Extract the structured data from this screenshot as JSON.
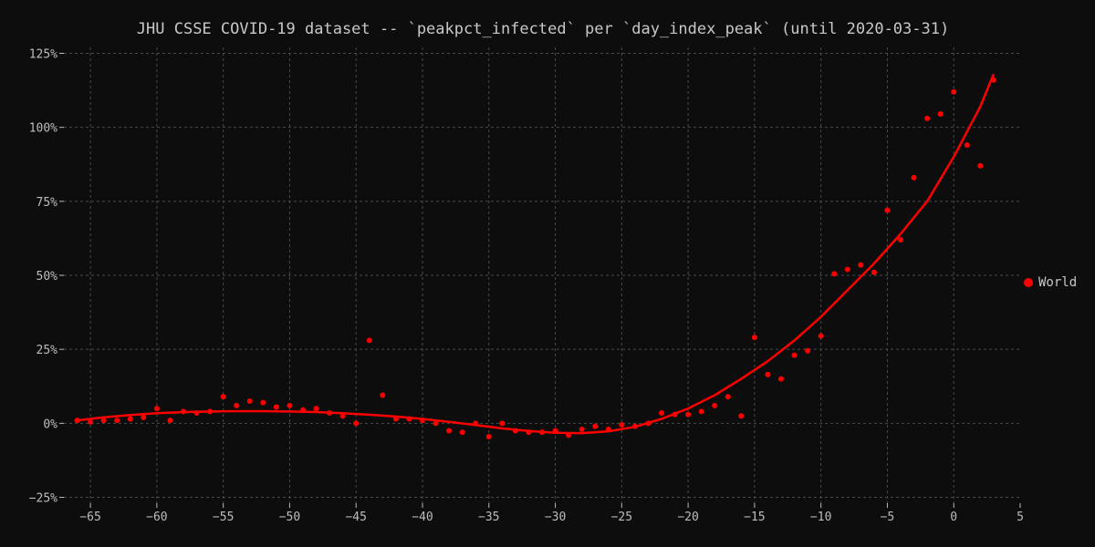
{
  "chart_data": {
    "type": "scatter",
    "title": "JHU CSSE COVID-19 dataset -- `peakpct_infected` per `day_index_peak` (until 2020-03-31)",
    "xlabel": "",
    "ylabel": "",
    "xlim": [
      -67,
      5
    ],
    "ylim": [
      -27,
      127
    ],
    "xticks": [
      -65,
      -60,
      -55,
      -50,
      -45,
      -40,
      -35,
      -30,
      -25,
      -20,
      -15,
      -10,
      -5,
      0,
      5
    ],
    "yticks": [
      -25,
      0,
      25,
      50,
      75,
      100,
      125
    ],
    "ytick_suffix": "%",
    "grid": true,
    "legend_position": "right",
    "series": [
      {
        "name": "World",
        "color": "#ff0000",
        "x": [
          -66,
          -65,
          -64,
          -63,
          -62,
          -61,
          -60,
          -59,
          -58,
          -57,
          -56,
          -55,
          -54,
          -53,
          -52,
          -51,
          -50,
          -49,
          -48,
          -47,
          -46,
          -45,
          -44,
          -43,
          -42,
          -41,
          -40,
          -39,
          -38,
          -37,
          -36,
          -35,
          -34,
          -33,
          -32,
          -31,
          -30,
          -29,
          -28,
          -27,
          -26,
          -25,
          -24,
          -23,
          -22,
          -21,
          -20,
          -19,
          -18,
          -17,
          -16,
          -15,
          -14,
          -13,
          -12,
          -11,
          -10,
          -9,
          -8,
          -7,
          -6,
          -5,
          -4,
          -3,
          -2,
          -1,
          0,
          1,
          2,
          3
        ],
        "y": [
          1,
          0.5,
          1,
          1,
          1.5,
          2,
          5,
          1,
          4,
          3.5,
          4,
          9,
          6,
          7.5,
          7,
          5.5,
          6,
          4.5,
          5,
          3.5,
          2.5,
          0,
          28,
          9.5,
          1.5,
          1.5,
          1,
          0,
          -2.5,
          -3,
          0,
          -4.5,
          0,
          -2.5,
          -3,
          -3,
          -2.5,
          -4,
          -2,
          -1,
          -2,
          -0.5,
          -1,
          0,
          3.5,
          3,
          3,
          4,
          6,
          9,
          2.5,
          29,
          16.5,
          15,
          23,
          24.5,
          29.5,
          50.5,
          52,
          53.5,
          51,
          72,
          62,
          83,
          103,
          104.5,
          112,
          94,
          87,
          116
        ]
      }
    ],
    "trend": {
      "color": "#ff0000",
      "x": [
        -66,
        -64,
        -62,
        -60,
        -58,
        -56,
        -54,
        -52,
        -50,
        -48,
        -46,
        -44,
        -42,
        -40,
        -38,
        -36,
        -34,
        -32,
        -30,
        -28,
        -26,
        -24,
        -22,
        -20,
        -18,
        -16,
        -14,
        -12,
        -10,
        -8,
        -6,
        -4,
        -2,
        0,
        2,
        3
      ],
      "y": [
        1,
        2,
        2.8,
        3.4,
        3.8,
        4,
        4.1,
        4.1,
        4,
        3.8,
        3.4,
        2.9,
        2.3,
        1.5,
        0.5,
        -0.6,
        -1.7,
        -2.6,
        -3.2,
        -3.3,
        -2.7,
        -1.2,
        1.5,
        5,
        9.5,
        15,
        21,
        28,
        36,
        45,
        54,
        64,
        75,
        90,
        107,
        118
      ]
    }
  }
}
